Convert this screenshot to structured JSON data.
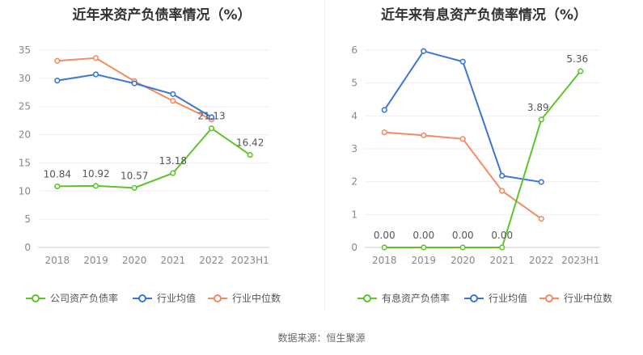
{
  "source": "数据来源：恒生聚源",
  "chart_data": [
    {
      "type": "line",
      "title": "近年来资产负债率情况（%）",
      "categories": [
        "2018",
        "2019",
        "2020",
        "2021",
        "2022",
        "2023H1"
      ],
      "yticks": [
        "0",
        "5",
        "10",
        "15",
        "20",
        "25",
        "30",
        "35"
      ],
      "ylim": [
        0,
        35
      ],
      "grid": true,
      "legend_position": "bottom",
      "series": [
        {
          "name": "公司资产负债率",
          "color": "#5dc42b",
          "values": [
            10.84,
            10.92,
            10.57,
            13.18,
            21.13,
            16.42
          ],
          "labels": [
            "10.84",
            "10.92",
            "10.57",
            "13.18",
            "21.13",
            "16.42"
          ]
        },
        {
          "name": "行业均值",
          "color": "#3b75d6",
          "values": [
            29.6,
            30.7,
            29.1,
            27.2,
            23.1,
            null
          ]
        },
        {
          "name": "行业中位数",
          "color": "#f28b62",
          "values": [
            33.1,
            33.6,
            29.5,
            26.0,
            22.7,
            null
          ]
        }
      ]
    },
    {
      "type": "line",
      "title": "近年来有息资产负债率情况（%）",
      "categories": [
        "2018",
        "2019",
        "2020",
        "2021",
        "2022",
        "2023H1"
      ],
      "yticks": [
        "0",
        "1",
        "2",
        "3",
        "4",
        "5",
        "6"
      ],
      "ylim": [
        0,
        6
      ],
      "grid": true,
      "legend_position": "bottom",
      "series": [
        {
          "name": "有息资产负债率",
          "color": "#5dc42b",
          "values": [
            0.0,
            0.0,
            0.0,
            0.0,
            3.89,
            5.36
          ],
          "labels": [
            "0.00",
            "0.00",
            "0.00",
            "0.00",
            "3.89",
            "5.36"
          ]
        },
        {
          "name": "行业均值",
          "color": "#3b75d6",
          "values": [
            4.18,
            5.97,
            5.65,
            2.18,
            1.99,
            null
          ]
        },
        {
          "name": "行业中位数",
          "color": "#f28b62",
          "values": [
            3.5,
            3.41,
            3.3,
            1.72,
            0.87,
            null
          ]
        }
      ]
    }
  ]
}
